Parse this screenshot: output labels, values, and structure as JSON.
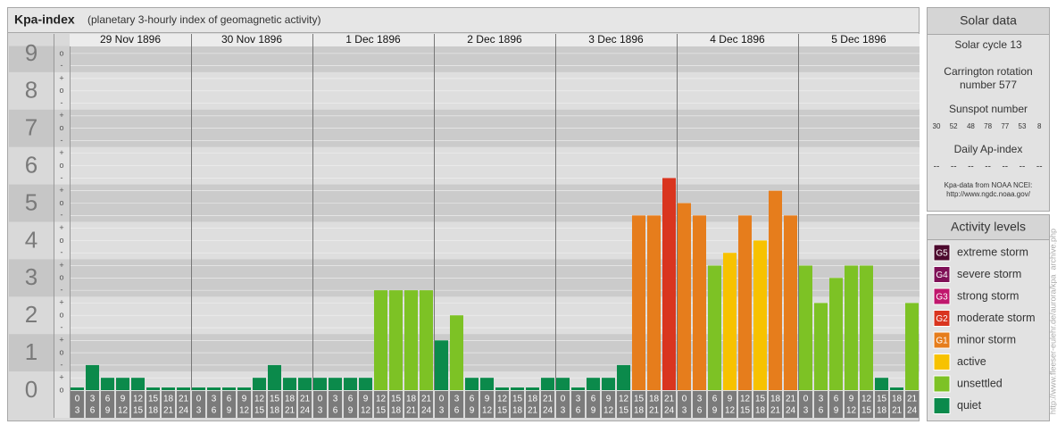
{
  "chart_data": {
    "type": "bar",
    "title": "Kpa-index",
    "subtitle": "(planetary 3-hourly index of geomagnetic activity)",
    "days": [
      "29 Nov 1896",
      "30 Nov 1896",
      "1 Dec 1896",
      "2 Dec 1896",
      "3 Dec 1896",
      "4 Dec 1896",
      "5 Dec 1896"
    ],
    "hour_labels": [
      [
        "0",
        "3"
      ],
      [
        "3",
        "6"
      ],
      [
        "6",
        "9"
      ],
      [
        "9",
        "12"
      ],
      [
        "12",
        "15"
      ],
      [
        "15",
        "18"
      ],
      [
        "18",
        "21"
      ],
      [
        "21",
        "24"
      ]
    ],
    "values": [
      0,
      0.67,
      0.33,
      0.33,
      0.33,
      0,
      0,
      0,
      0,
      0,
      0,
      0,
      0.33,
      0.67,
      0.33,
      0.33,
      0.33,
      0.33,
      0.33,
      0.33,
      2.67,
      2.67,
      2.67,
      2.67,
      1.33,
      2,
      0.33,
      0.33,
      0,
      0,
      0,
      0.33,
      0.33,
      0,
      0.33,
      0.33,
      0.67,
      4.67,
      4.67,
      5.67,
      5,
      4.67,
      3.33,
      3.67,
      4.67,
      4,
      5.33,
      4.67,
      3.33,
      2.33,
      3,
      3.33,
      3.33,
      0.33,
      0,
      2.33
    ],
    "colors": [
      "#0b8a4b",
      "#0b8a4b",
      "#0b8a4b",
      "#0b8a4b",
      "#0b8a4b",
      "#0b8a4b",
      "#0b8a4b",
      "#0b8a4b",
      "#0b8a4b",
      "#0b8a4b",
      "#0b8a4b",
      "#0b8a4b",
      "#0b8a4b",
      "#0b8a4b",
      "#0b8a4b",
      "#0b8a4b",
      "#0b8a4b",
      "#0b8a4b",
      "#0b8a4b",
      "#0b8a4b",
      "#7dc225",
      "#7dc225",
      "#7dc225",
      "#7dc225",
      "#0b8a4b",
      "#7dc225",
      "#0b8a4b",
      "#0b8a4b",
      "#0b8a4b",
      "#0b8a4b",
      "#0b8a4b",
      "#0b8a4b",
      "#0b8a4b",
      "#0b8a4b",
      "#0b8a4b",
      "#0b8a4b",
      "#0b8a4b",
      "#e67d1c",
      "#e67d1c",
      "#d9351f",
      "#e67d1c",
      "#e67d1c",
      "#7dc225",
      "#f7c200",
      "#e67d1c",
      "#f7c200",
      "#e67d1c",
      "#e67d1c",
      "#7dc225",
      "#7dc225",
      "#7dc225",
      "#7dc225",
      "#7dc225",
      "#0b8a4b",
      "#0b8a4b",
      "#7dc225"
    ],
    "ylim": [
      0,
      9.2
    ],
    "yticks": [
      0,
      1,
      2,
      3,
      4,
      5,
      6,
      7,
      8,
      9
    ],
    "minor_yticks": [
      {
        "value": 9,
        "label": "o"
      },
      {
        "value": 8.67,
        "label": "-"
      },
      {
        "value": 8.33,
        "label": "+"
      },
      {
        "value": 8,
        "label": "o"
      },
      {
        "value": 7.67,
        "label": "-"
      },
      {
        "value": 7.33,
        "label": "+"
      },
      {
        "value": 7,
        "label": "o"
      },
      {
        "value": 6.67,
        "label": "-"
      },
      {
        "value": 6.33,
        "label": "+"
      },
      {
        "value": 6,
        "label": "o"
      },
      {
        "value": 5.67,
        "label": "-"
      },
      {
        "value": 5.33,
        "label": "+"
      },
      {
        "value": 5,
        "label": "o"
      },
      {
        "value": 4.67,
        "label": "-"
      },
      {
        "value": 4.33,
        "label": "+"
      },
      {
        "value": 4,
        "label": "o"
      },
      {
        "value": 3.67,
        "label": "-"
      },
      {
        "value": 3.33,
        "label": "+"
      },
      {
        "value": 3,
        "label": "o"
      },
      {
        "value": 2.67,
        "label": "-"
      },
      {
        "value": 2.33,
        "label": "+"
      },
      {
        "value": 2,
        "label": "o"
      },
      {
        "value": 1.67,
        "label": "-"
      },
      {
        "value": 1.33,
        "label": "+"
      },
      {
        "value": 1,
        "label": "o"
      },
      {
        "value": 0.67,
        "label": "-"
      },
      {
        "value": 0.33,
        "label": "+"
      },
      {
        "value": 0,
        "label": "o"
      }
    ],
    "grid": true
  },
  "solar_data": {
    "title": "Solar data",
    "solar_cycle": "Solar cycle 13",
    "carrington": [
      "Carrington rotation",
      "number 577"
    ],
    "sunspot_label": "Sunspot number",
    "sunspot_numbers": [
      30,
      52,
      48,
      78,
      77,
      53,
      8
    ],
    "ap_label": "Daily Ap-index",
    "ap_values": [
      "--",
      "--",
      "--",
      "--",
      "--",
      "--",
      "--"
    ],
    "source": [
      "Kpa-data from NOAA NCEI:",
      "http://www.ngdc.noaa.gov/"
    ]
  },
  "activity_levels": {
    "title": "Activity levels",
    "levels": [
      {
        "code": "G5",
        "name": "extreme storm",
        "color": "#4d0a2e"
      },
      {
        "code": "G4",
        "name": "severe storm",
        "color": "#7f1057"
      },
      {
        "code": "G3",
        "name": "strong storm",
        "color": "#c0176d"
      },
      {
        "code": "G2",
        "name": "moderate storm",
        "color": "#d9351f"
      },
      {
        "code": "G1",
        "name": "minor storm",
        "color": "#e67d1c"
      },
      {
        "name": "active",
        "color": "#f7c200"
      },
      {
        "name": "unsettled",
        "color": "#7dc225"
      },
      {
        "name": "quiet",
        "color": "#0b8a4b"
      }
    ]
  },
  "side_url": "http://www.fleeser-eulehr.de/aurora/kpa_archive.php"
}
